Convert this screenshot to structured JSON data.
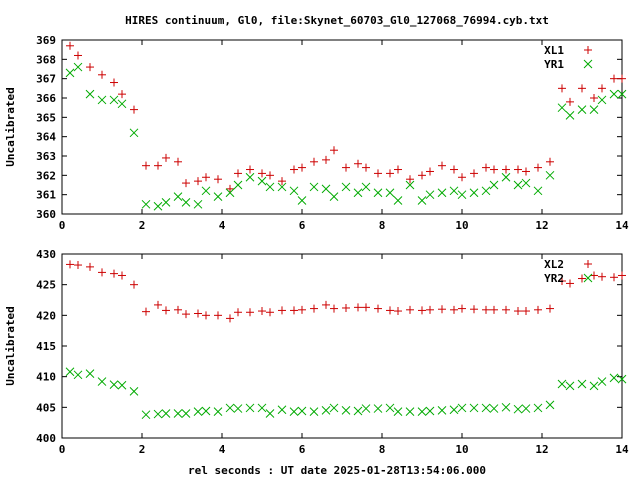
{
  "figure": {
    "title": "HIRES continuum, Gl0, file:Skynet_60703_Gl0_127068_76994.cyb.txt",
    "xlabel": "rel seconds : UT date 2025-01-28T13:54:06.000"
  },
  "colors": {
    "xl": "#cc0000",
    "yr": "#00aa00",
    "axis": "#000000"
  },
  "chart_data": [
    {
      "type": "scatter",
      "ylabel": "Uncalibrated",
      "xlim": [
        0,
        14
      ],
      "ylim": [
        360,
        369
      ],
      "xticks": [
        0,
        2,
        4,
        6,
        8,
        10,
        12,
        14
      ],
      "yticks": [
        360,
        361,
        362,
        363,
        364,
        365,
        366,
        367,
        368,
        369
      ],
      "grid": false,
      "legend": "top-right",
      "x": [
        0.2,
        0.4,
        0.7,
        1.0,
        1.3,
        1.5,
        1.8,
        2.1,
        2.4,
        2.6,
        2.9,
        3.1,
        3.4,
        3.6,
        3.9,
        4.2,
        4.4,
        4.7,
        5.0,
        5.2,
        5.5,
        5.8,
        6.0,
        6.3,
        6.6,
        6.8,
        7.1,
        7.4,
        7.6,
        7.9,
        8.2,
        8.4,
        8.7,
        9.0,
        9.2,
        9.5,
        9.8,
        10.0,
        10.3,
        10.6,
        10.8,
        11.1,
        11.4,
        11.6,
        11.9,
        12.2,
        12.5,
        12.7,
        13.0,
        13.3,
        13.5,
        13.8,
        14.0
      ],
      "series": [
        {
          "name": "XL1",
          "marker": "plus",
          "values": [
            368.7,
            368.2,
            367.6,
            367.2,
            366.8,
            366.2,
            365.4,
            362.5,
            362.5,
            362.9,
            362.7,
            361.6,
            361.7,
            361.9,
            361.8,
            361.3,
            362.1,
            362.3,
            362.1,
            362.0,
            361.7,
            362.3,
            362.4,
            362.7,
            362.8,
            363.3,
            362.4,
            362.6,
            362.4,
            362.1,
            362.1,
            362.3,
            361.8,
            362.0,
            362.2,
            362.5,
            362.3,
            361.9,
            362.1,
            362.4,
            362.3,
            362.3,
            362.3,
            362.2,
            362.4,
            362.7,
            366.5,
            365.8,
            366.5,
            366.0,
            366.5,
            367.0,
            367.0
          ]
        },
        {
          "name": "YR1",
          "marker": "cross",
          "values": [
            367.3,
            367.6,
            366.2,
            365.9,
            365.9,
            365.7,
            364.2,
            360.5,
            360.4,
            360.6,
            360.9,
            360.6,
            360.5,
            361.2,
            360.9,
            361.1,
            361.5,
            361.9,
            361.7,
            361.4,
            361.4,
            361.2,
            360.7,
            361.4,
            361.3,
            360.9,
            361.4,
            361.1,
            361.4,
            361.1,
            361.1,
            360.7,
            361.5,
            360.7,
            361.0,
            361.1,
            361.2,
            361.0,
            361.1,
            361.2,
            361.5,
            361.9,
            361.5,
            361.6,
            361.2,
            362.0,
            365.5,
            365.1,
            365.4,
            365.4,
            365.9,
            366.2,
            366.2
          ]
        }
      ]
    },
    {
      "type": "scatter",
      "ylabel": "Uncalibrated",
      "xlim": [
        0,
        14
      ],
      "ylim": [
        400,
        430
      ],
      "xticks": [
        0,
        2,
        4,
        6,
        8,
        10,
        12,
        14
      ],
      "yticks": [
        400,
        405,
        410,
        415,
        420,
        425,
        430
      ],
      "grid": false,
      "legend": "top-right",
      "x": [
        0.2,
        0.4,
        0.7,
        1.0,
        1.3,
        1.5,
        1.8,
        2.1,
        2.4,
        2.6,
        2.9,
        3.1,
        3.4,
        3.6,
        3.9,
        4.2,
        4.4,
        4.7,
        5.0,
        5.2,
        5.5,
        5.8,
        6.0,
        6.3,
        6.6,
        6.8,
        7.1,
        7.4,
        7.6,
        7.9,
        8.2,
        8.4,
        8.7,
        9.0,
        9.2,
        9.5,
        9.8,
        10.0,
        10.3,
        10.6,
        10.8,
        11.1,
        11.4,
        11.6,
        11.9,
        12.2,
        12.5,
        12.7,
        13.0,
        13.3,
        13.5,
        13.8,
        14.0
      ],
      "series": [
        {
          "name": "XL2",
          "marker": "plus",
          "values": [
            428.3,
            428.2,
            427.9,
            427.0,
            426.8,
            426.5,
            425.0,
            420.6,
            421.7,
            420.8,
            420.9,
            420.2,
            420.3,
            420.0,
            420.0,
            419.5,
            420.5,
            420.5,
            420.7,
            420.5,
            420.8,
            420.8,
            420.9,
            421.1,
            421.7,
            421.1,
            421.2,
            421.3,
            421.3,
            421.1,
            420.8,
            420.7,
            420.9,
            420.8,
            420.9,
            421.0,
            420.9,
            421.1,
            421.0,
            420.9,
            420.9,
            420.9,
            420.7,
            420.7,
            420.9,
            421.1,
            425.6,
            425.2,
            426.0,
            426.5,
            426.3,
            426.2,
            426.5
          ]
        },
        {
          "name": "YR2",
          "marker": "cross",
          "values": [
            410.8,
            410.3,
            410.5,
            409.2,
            408.7,
            408.6,
            407.6,
            403.8,
            403.9,
            404.0,
            404.0,
            404.0,
            404.3,
            404.4,
            404.3,
            404.9,
            404.8,
            404.9,
            404.9,
            404.0,
            404.6,
            404.3,
            404.4,
            404.3,
            404.5,
            404.9,
            404.5,
            404.4,
            404.8,
            404.8,
            404.9,
            404.3,
            404.3,
            404.3,
            404.4,
            404.5,
            404.6,
            404.9,
            404.9,
            404.9,
            404.8,
            405.0,
            404.7,
            404.8,
            404.9,
            405.4,
            408.8,
            408.5,
            408.8,
            408.5,
            409.2,
            409.8,
            409.6
          ]
        }
      ]
    }
  ]
}
